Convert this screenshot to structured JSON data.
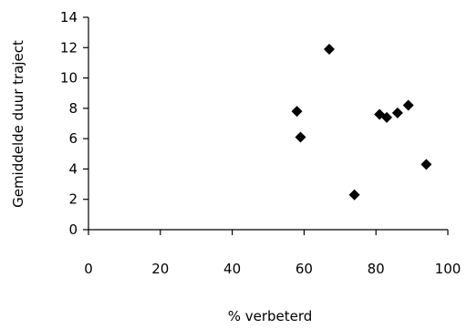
{
  "chart_data": {
    "type": "scatter",
    "title": "",
    "xlabel": "% verbeterd",
    "ylabel": "Gemiddelde duur traject",
    "xlim": [
      0,
      100
    ],
    "ylim": [
      0,
      14
    ],
    "xticks": [
      0,
      20,
      40,
      60,
      80,
      100
    ],
    "yticks": [
      0,
      2,
      4,
      6,
      8,
      10,
      12,
      14
    ],
    "grid": false,
    "legend": "none",
    "marker": "diamond",
    "marker_color": "#000000",
    "points": [
      {
        "x": 58,
        "y": 7.8
      },
      {
        "x": 59,
        "y": 6.1
      },
      {
        "x": 67,
        "y": 11.9
      },
      {
        "x": 74,
        "y": 2.3
      },
      {
        "x": 81,
        "y": 7.6
      },
      {
        "x": 83,
        "y": 7.4
      },
      {
        "x": 86,
        "y": 7.7
      },
      {
        "x": 89,
        "y": 8.2
      },
      {
        "x": 94,
        "y": 4.3
      }
    ]
  }
}
